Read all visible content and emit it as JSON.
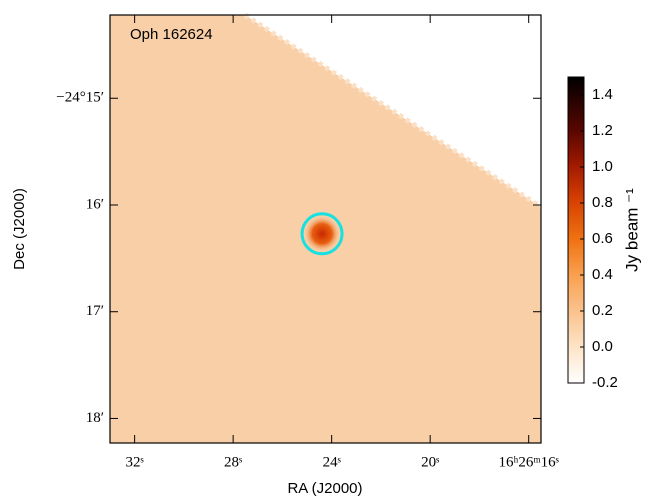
{
  "chart_data": {
    "type": "image",
    "title": "Oph 162624",
    "xlabel": "RA (J2000)",
    "ylabel": "Dec (J2000)",
    "xlim": [
      33,
      15.5
    ],
    "xticks": [
      {
        "value": 32,
        "label": "32ˢ"
      },
      {
        "value": 28,
        "label": "28ˢ"
      },
      {
        "value": 24,
        "label": "24ˢ"
      },
      {
        "value": 20,
        "label": "20ˢ"
      },
      {
        "value": 16,
        "label": "16ʰ26ᵐ16ˢ"
      }
    ],
    "ylim": [
      -18.23,
      -14.22
    ],
    "yticks": [
      {
        "value": -15,
        "label": "−24°15′"
      },
      {
        "value": -16,
        "label": "16′"
      },
      {
        "value": -17,
        "label": "17′"
      },
      {
        "value": -18,
        "label": "18′"
      }
    ],
    "marker": {
      "x": 24.39,
      "y": -16.27,
      "color": "#19e0e0"
    },
    "colorbar": {
      "label": "Jy beam ⁻¹",
      "clim": [
        -0.2,
        1.5
      ],
      "ticks": [
        -0.2,
        {
          "value": 0,
          "label": "0.0"
        },
        0.2,
        0.4,
        0.6,
        0.8,
        {
          "value": 1,
          "label": "1.0"
        },
        1.2,
        1.4
      ]
    }
  }
}
